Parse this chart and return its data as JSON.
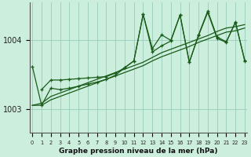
{
  "bg_color": "#cceedd",
  "grid_color": "#99ccbb",
  "line_color": "#1a5c1a",
  "title": "Graphe pression niveau de la mer (hPa)",
  "ylim": [
    1002.65,
    1004.55
  ],
  "xlim": [
    -0.3,
    23.3
  ],
  "yticks": [
    1003,
    1004
  ],
  "xticks": [
    0,
    1,
    2,
    3,
    4,
    5,
    6,
    7,
    8,
    9,
    10,
    11,
    12,
    13,
    14,
    15,
    16,
    17,
    18,
    19,
    20,
    21,
    22,
    23
  ],
  "series": {
    "band_upper": {
      "x": [
        0,
        1,
        2,
        3,
        4,
        5,
        6,
        7,
        8,
        9,
        10,
        11,
        12,
        13,
        14,
        15,
        16,
        17,
        18,
        19,
        20,
        21,
        22,
        23
      ],
      "y": [
        1003.05,
        1003.08,
        1003.18,
        1003.23,
        1003.28,
        1003.33,
        1003.38,
        1003.43,
        1003.48,
        1003.53,
        1003.58,
        1003.63,
        1003.68,
        1003.75,
        1003.82,
        1003.87,
        1003.92,
        1003.97,
        1004.02,
        1004.07,
        1004.13,
        1004.18,
        1004.2,
        1004.23
      ]
    },
    "band_lower": {
      "x": [
        0,
        1,
        2,
        3,
        4,
        5,
        6,
        7,
        8,
        9,
        10,
        11,
        12,
        13,
        14,
        15,
        16,
        17,
        18,
        19,
        20,
        21,
        22,
        23
      ],
      "y": [
        1003.05,
        1003.05,
        1003.13,
        1003.18,
        1003.23,
        1003.28,
        1003.33,
        1003.38,
        1003.43,
        1003.48,
        1003.53,
        1003.58,
        1003.63,
        1003.7,
        1003.76,
        1003.81,
        1003.86,
        1003.91,
        1003.97,
        1004.02,
        1004.07,
        1004.12,
        1004.14,
        1004.18
      ]
    },
    "zigzag1": {
      "x": [
        0,
        1,
        2,
        3,
        4,
        5,
        6,
        7,
        8,
        9,
        10,
        11,
        12,
        13,
        14,
        15,
        16,
        17,
        18,
        19,
        20,
        21,
        22,
        23
      ],
      "y": [
        1003.62,
        1003.05,
        1003.3,
        1003.28,
        1003.3,
        1003.33,
        1003.36,
        1003.39,
        1003.43,
        1003.49,
        1003.6,
        1003.7,
        1004.38,
        1003.83,
        1003.92,
        1003.99,
        1004.37,
        1003.68,
        1004.07,
        1004.41,
        1004.03,
        1003.97,
        1004.27,
        1003.7
      ]
    },
    "zigzag2": {
      "x": [
        1,
        2,
        3,
        4,
        5,
        6,
        7,
        8,
        9,
        10,
        11,
        12,
        13,
        14,
        15,
        16,
        17,
        18,
        19,
        20,
        21,
        22,
        23
      ],
      "y": [
        1003.28,
        1003.42,
        1003.42,
        1003.43,
        1003.44,
        1003.45,
        1003.46,
        1003.47,
        1003.52,
        1003.6,
        1003.7,
        1004.38,
        1003.88,
        1004.08,
        1004.0,
        1004.37,
        1003.68,
        1004.08,
        1004.43,
        1004.05,
        1003.98,
        1004.26,
        1003.71
      ]
    }
  }
}
